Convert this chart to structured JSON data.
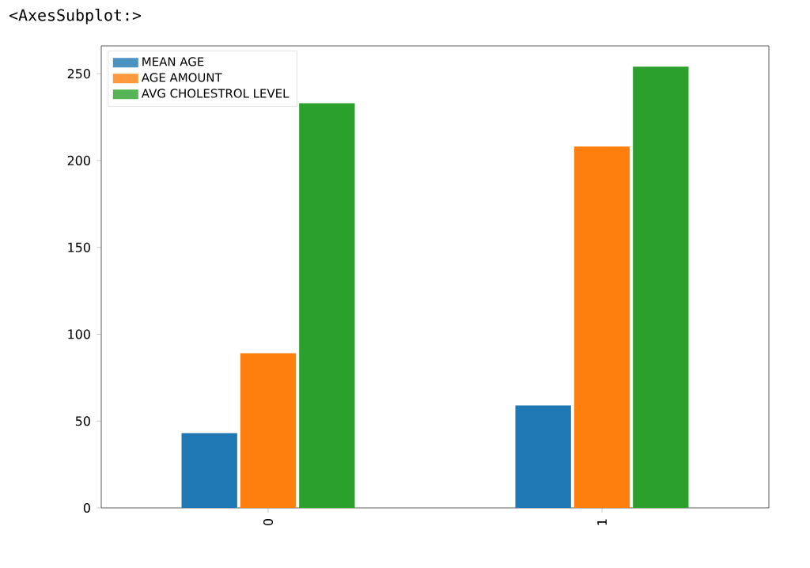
{
  "chart_data": {
    "type": "bar",
    "categories": [
      "0",
      "1"
    ],
    "series": [
      {
        "name": "MEAN AGE",
        "color": "#1f77b4",
        "values": [
          43,
          59
        ]
      },
      {
        "name": "AGE AMOUNT",
        "color": "#ff7f0e",
        "values": [
          89,
          208
        ]
      },
      {
        "name": "AVG CHOLESTROL LEVEL",
        "color": "#2ca02c",
        "values": [
          233,
          254
        ]
      }
    ],
    "ylim": [
      0,
      266
    ],
    "yticks": [
      0,
      50,
      100,
      150,
      200,
      250
    ],
    "legend": "top left",
    "grid": false,
    "annotations": [
      "<AxesSubplot:>"
    ]
  }
}
